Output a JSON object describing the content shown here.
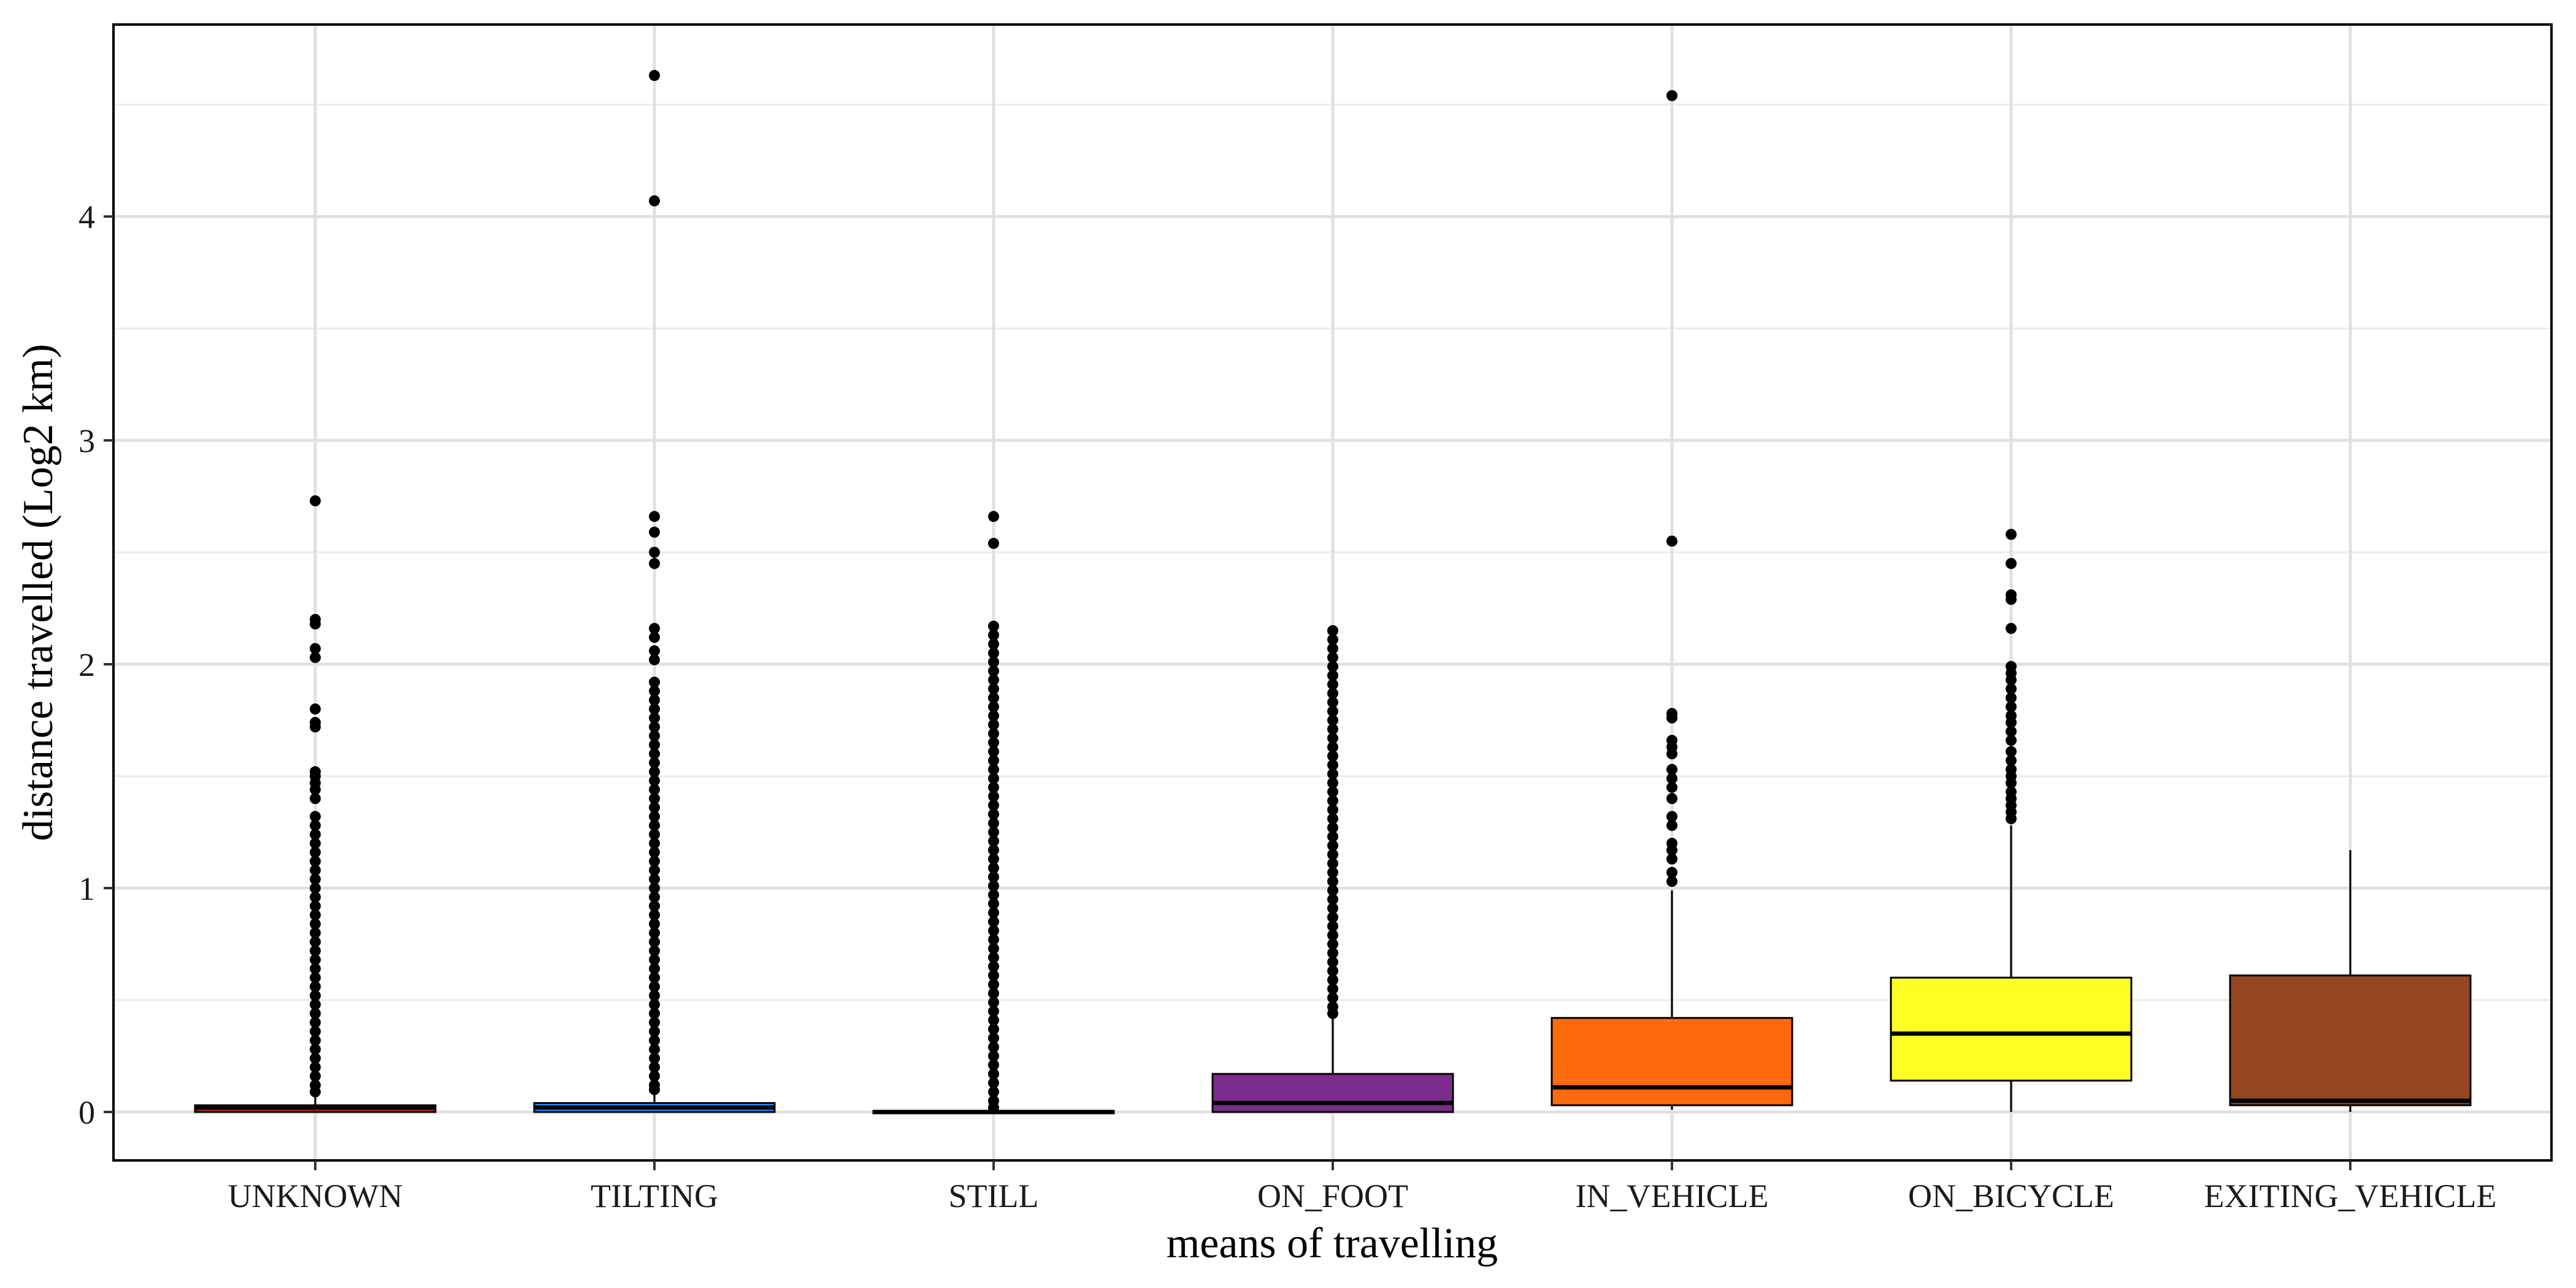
{
  "chart_data": {
    "type": "boxplot",
    "xlabel": "means of travelling",
    "ylabel": "distance travelled (Log2 km)",
    "ylim": [
      -0.22,
      4.85
    ],
    "yticks": [
      0,
      1,
      2,
      3,
      4
    ],
    "grid": true,
    "categories": [
      "UNKNOWN",
      "TILTING",
      "STILL",
      "ON_FOOT",
      "IN_VEHICLE",
      "ON_BICYCLE",
      "EXITING_VEHICLE"
    ],
    "boxes": [
      {
        "category": "UNKNOWN",
        "color": "#B22222",
        "min": 0,
        "q1": 0.0,
        "median": 0.02,
        "q3": 0.03,
        "max": 0.07,
        "outliers": [
          2.73,
          2.2,
          2.18,
          2.07,
          2.03,
          1.8,
          1.74,
          1.72,
          1.52,
          1.5,
          1.47,
          1.44,
          1.4,
          1.32,
          1.28,
          1.24,
          1.2,
          1.16,
          1.12,
          1.08,
          1.04,
          1.0,
          0.96,
          0.92,
          0.88,
          0.84,
          0.8,
          0.76,
          0.72,
          0.68,
          0.64,
          0.6,
          0.56,
          0.52,
          0.48,
          0.44,
          0.4,
          0.36,
          0.32,
          0.28,
          0.24,
          0.2,
          0.16,
          0.12,
          0.09
        ]
      },
      {
        "category": "TILTING",
        "color": "#1E90FF",
        "min": 0,
        "q1": 0.0,
        "median": 0.02,
        "q3": 0.04,
        "max": 0.09,
        "outliers": [
          4.63,
          4.07,
          2.66,
          2.59,
          2.5,
          2.45,
          2.16,
          2.12,
          2.06,
          2.02,
          1.92,
          1.88,
          1.84,
          1.8,
          1.76,
          1.72,
          1.68,
          1.64,
          1.6,
          1.56,
          1.52,
          1.48,
          1.44,
          1.4,
          1.36,
          1.32,
          1.28,
          1.24,
          1.2,
          1.16,
          1.12,
          1.08,
          1.04,
          1.0,
          0.96,
          0.92,
          0.88,
          0.84,
          0.8,
          0.76,
          0.72,
          0.68,
          0.64,
          0.6,
          0.56,
          0.52,
          0.48,
          0.44,
          0.4,
          0.36,
          0.32,
          0.28,
          0.24,
          0.2,
          0.16,
          0.12,
          0.1
        ]
      },
      {
        "category": "STILL",
        "color": "#000000",
        "min": 0,
        "q1": 0.0,
        "median": 0.0,
        "q3": 0.005,
        "max": 0.01,
        "outliers": [
          2.66,
          2.54,
          2.17,
          2.13,
          2.09,
          2.05,
          2.01,
          1.97,
          1.93,
          1.89,
          1.85,
          1.81,
          1.77,
          1.73,
          1.69,
          1.65,
          1.61,
          1.57,
          1.53,
          1.49,
          1.45,
          1.41,
          1.37,
          1.33,
          1.29,
          1.25,
          1.21,
          1.17,
          1.13,
          1.09,
          1.05,
          1.01,
          0.97,
          0.93,
          0.89,
          0.85,
          0.81,
          0.77,
          0.73,
          0.69,
          0.65,
          0.61,
          0.57,
          0.53,
          0.49,
          0.45,
          0.41,
          0.37,
          0.33,
          0.29,
          0.25,
          0.21,
          0.17,
          0.13,
          0.09,
          0.05,
          0.02
        ]
      },
      {
        "category": "ON_FOOT",
        "color": "#7B2D8B",
        "min": 0,
        "q1": 0.0,
        "median": 0.04,
        "q3": 0.17,
        "max": 0.42,
        "outliers": [
          2.15,
          2.11,
          2.07,
          2.03,
          1.99,
          1.95,
          1.91,
          1.87,
          1.83,
          1.79,
          1.75,
          1.71,
          1.67,
          1.63,
          1.59,
          1.55,
          1.51,
          1.47,
          1.43,
          1.39,
          1.35,
          1.31,
          1.27,
          1.23,
          1.19,
          1.15,
          1.11,
          1.07,
          1.03,
          0.99,
          0.95,
          0.91,
          0.87,
          0.83,
          0.79,
          0.75,
          0.71,
          0.67,
          0.63,
          0.59,
          0.55,
          0.51,
          0.47,
          0.44
        ]
      },
      {
        "category": "IN_VEHICLE",
        "color": "#FF6A0D",
        "min": 0.01,
        "q1": 0.03,
        "median": 0.11,
        "q3": 0.42,
        "max": 0.99,
        "outliers": [
          4.54,
          2.55,
          1.78,
          1.76,
          1.66,
          1.63,
          1.6,
          1.53,
          1.49,
          1.45,
          1.4,
          1.32,
          1.28,
          1.2,
          1.17,
          1.13,
          1.07,
          1.03
        ]
      },
      {
        "category": "ON_BICYCLE",
        "color": "#FFFF26",
        "min": 0.0,
        "q1": 0.14,
        "median": 0.35,
        "q3": 0.6,
        "max": 1.28,
        "outliers": [
          2.58,
          2.45,
          2.31,
          2.29,
          2.16,
          1.99,
          1.96,
          1.93,
          1.89,
          1.85,
          1.81,
          1.77,
          1.74,
          1.7,
          1.66,
          1.61,
          1.57,
          1.53,
          1.5,
          1.47,
          1.43,
          1.4,
          1.37,
          1.34,
          1.31
        ]
      },
      {
        "category": "EXITING_VEHICLE",
        "color": "#954520",
        "min": 0.0,
        "q1": 0.03,
        "median": 0.05,
        "q3": 0.61,
        "max": 1.17,
        "outliers": []
      }
    ]
  }
}
